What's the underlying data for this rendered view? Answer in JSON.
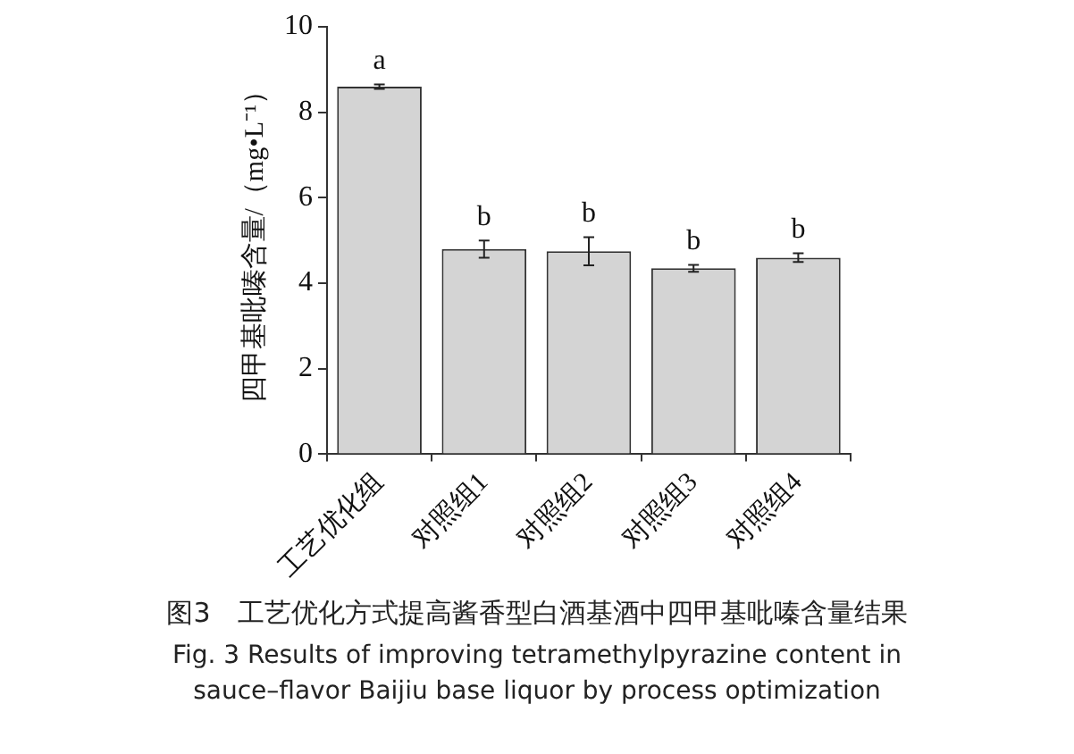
{
  "chart_data": {
    "type": "bar",
    "title": "图3　工艺优化方式提高酱香型白酒基酒中四甲基吡嗪含量结果",
    "subtitle": "Fig. 3 Results of improving tetramethylpyrazine content in sauce–flavor Baijiu base liquor by process optimization",
    "ylabel": "四甲基吡嗪含量/（mg•L⁻¹）",
    "categories": [
      "工艺优化组",
      "对照组1",
      "对照组2",
      "对照组3",
      "对照组4"
    ],
    "values": [
      8.6,
      4.8,
      4.75,
      4.35,
      4.6
    ],
    "errors": [
      0.05,
      0.2,
      0.33,
      0.08,
      0.1
    ],
    "color": "#d4d4d4",
    "ylim": [
      0,
      10
    ],
    "yticks": [
      0,
      2,
      4,
      6,
      8,
      10
    ],
    "grid": false,
    "annotations": [
      "a",
      "b",
      "b",
      "b",
      "b"
    ]
  }
}
